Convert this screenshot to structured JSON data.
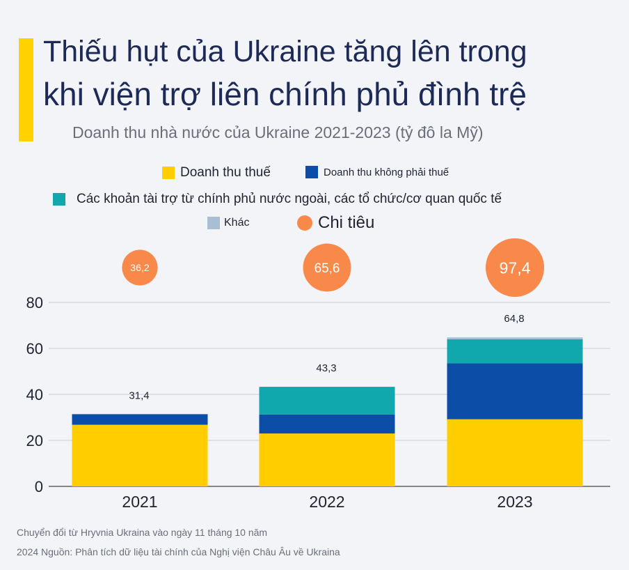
{
  "header": {
    "title_line1": "Thiếu hụt của Ukraine tăng lên trong",
    "title_line2": "khi viện trợ liên chính phủ đình trệ",
    "subtitle": "Doanh thu nhà nước của Ukraine 2021-2023 (tỷ đô la Mỹ)"
  },
  "legend": [
    {
      "label": "Doanh thu thuế",
      "color": "#ffcd00"
    },
    {
      "label": "Doanh thu không phải thuế",
      "color": "#0c4da8"
    },
    {
      "label": "Các khoản tài trợ từ chính phủ nước ngoài, các tổ chức/cơ quan quốc tế",
      "color": "#10a8ad"
    },
    {
      "label": "Khác",
      "color": "#a9bed0"
    },
    {
      "label": "Chi tiêu",
      "color": "#f9894a"
    }
  ],
  "chart_data": {
    "type": "bar",
    "stacked": true,
    "categories": [
      "2021",
      "2022",
      "2023"
    ],
    "series": [
      {
        "name": "Doanh thu thuế",
        "color": "#ffcd00",
        "values": [
          26.8,
          23.0,
          29.2
        ]
      },
      {
        "name": "Doanh thu không phải thuế",
        "color": "#0c4da8",
        "values": [
          4.6,
          8.3,
          24.3
        ]
      },
      {
        "name": "Các khoản tài trợ từ chính phủ nước ngoài, các tổ chức/cơ quan quốc tế",
        "color": "#10a8ad",
        "values": [
          0,
          12.0,
          10.5
        ]
      },
      {
        "name": "Khác",
        "color": "#a9bed0",
        "values": [
          0,
          0,
          0.8
        ]
      }
    ],
    "totals": [
      "31,4",
      "43,3",
      "64,8"
    ],
    "spending": {
      "name": "Chi tiêu",
      "color": "#f9894a",
      "values": [
        36.2,
        65.6,
        97.4
      ],
      "labels": [
        "36,2",
        "65,6",
        "97,4"
      ]
    },
    "y_ticks": [
      "0",
      "20",
      "40",
      "60",
      "80"
    ],
    "ylim": [
      0,
      80
    ],
    "grid": true
  },
  "footnote": {
    "line1": "Chuyển đổi từ Hryvnia Ukraina vào ngày 11 tháng 10 năm",
    "line2": "2024 Nguồn: Phân tích dữ liệu tài chính của Nghị viện Châu Âu về Ukraina"
  }
}
